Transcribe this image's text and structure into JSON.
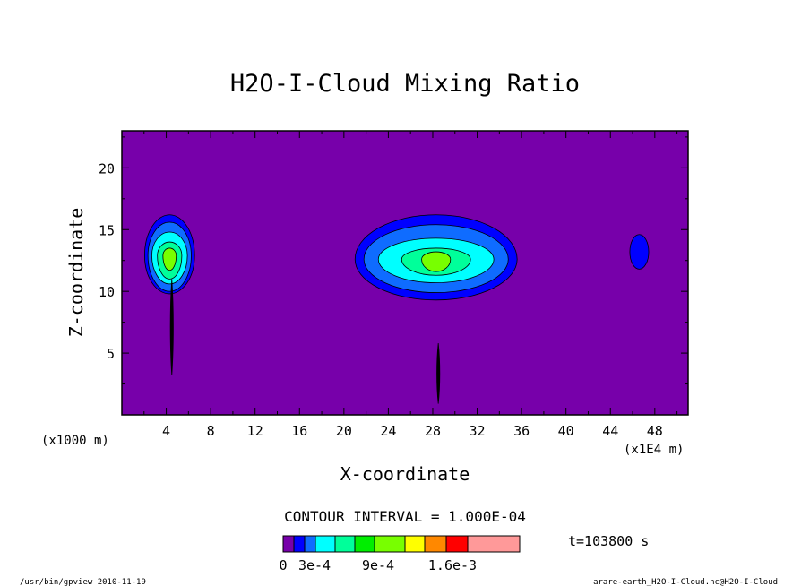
{
  "chart_data": {
    "type": "contour",
    "title": "H2O-I-Cloud Mixing Ratio",
    "xlabel": "X-coordinate",
    "ylabel": "Z-coordinate",
    "x_unit_left": "(x1000 m)",
    "x_unit_right": "(x1E4 m)",
    "xlim": [
      0,
      51
    ],
    "ylim": [
      0,
      23
    ],
    "x_ticks": [
      4,
      8,
      12,
      16,
      20,
      24,
      28,
      32,
      36,
      40,
      44,
      48
    ],
    "y_ticks": [
      5,
      10,
      15,
      20
    ],
    "contour_interval_text": "CONTOUR INTERVAL = 1.000E-04",
    "time_label": "t=103800 s",
    "background_level_color": "#7700aa",
    "colorbar": {
      "colors": [
        "#7700aa",
        "#0000ff",
        "#0f6cff",
        "#00ffff",
        "#00ff9a",
        "#00ee00",
        "#78ff00",
        "#ffff00",
        "#ff8800",
        "#ff0000",
        "#ff9999"
      ],
      "labels": [
        "0",
        "3e-4",
        "9e-4",
        "1.6e-3"
      ]
    },
    "cloud_regions": [
      {
        "name": "left",
        "x_center": 4.3,
        "z_center": 12.9,
        "levels": [
          {
            "rx": 2.25,
            "ry_up": 3.3,
            "ry_down": 3.1,
            "color": "#0000ff"
          },
          {
            "rx": 1.95,
            "ry_up": 2.7,
            "ry_down": 2.9,
            "color": "#0f6cff"
          },
          {
            "rx": 1.6,
            "ry_up": 1.9,
            "ry_down": 2.3,
            "color": "#00ffff"
          },
          {
            "rx": 1.1,
            "ry_up": 1.1,
            "ry_down": 1.9,
            "color": "#00ff9a"
          },
          {
            "rx": 0.6,
            "ry_up": 0.6,
            "ry_down": 1.2,
            "color": "#78ff00"
          }
        ]
      },
      {
        "name": "middle",
        "x_center": 28.3,
        "z_center": 12.6,
        "levels": [
          {
            "rx": 7.3,
            "ry_up": 3.6,
            "ry_down": 3.3,
            "color": "#0000ff"
          },
          {
            "rx": 6.5,
            "ry_up": 2.8,
            "ry_down": 2.7,
            "color": "#0f6cff"
          },
          {
            "rx": 5.2,
            "ry_up": 1.7,
            "ry_down": 1.9,
            "color": "#00ffff"
          },
          {
            "rx": 3.1,
            "ry_up": 0.9,
            "ry_down": 1.3,
            "color": "#00ff9a"
          },
          {
            "rx": 1.3,
            "ry_up": 0.6,
            "ry_down": 1.0,
            "color": "#78ff00"
          }
        ]
      },
      {
        "name": "right",
        "x_center": 46.6,
        "z_center": 13.2,
        "levels": [
          {
            "rx": 0.85,
            "ry_up": 1.4,
            "ry_down": 1.4,
            "color": "#0000ff"
          }
        ]
      }
    ],
    "filaments": [
      {
        "x": 4.5,
        "z_top": 11.0,
        "z_bottom": 3.2
      },
      {
        "x": 28.5,
        "z_top": 5.8,
        "z_bottom": 0.9
      }
    ]
  },
  "footer": {
    "left": "/usr/bin/gpview   2010-11-19",
    "right": "arare-earth_H2O-I-Cloud.nc@H2O-I-Cloud"
  }
}
